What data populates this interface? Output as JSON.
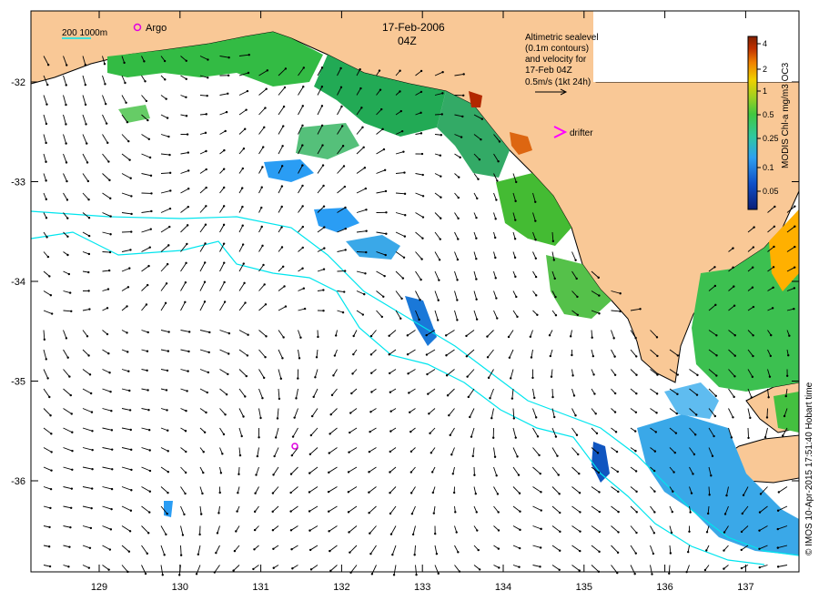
{
  "header": {
    "date": "17-Feb-2006",
    "time": "04Z"
  },
  "legend": {
    "depth_label": "200  1000m",
    "argo_label": "Argo",
    "drifter_label": "drifter",
    "altimetry_lines": [
      "Altimetric sealevel",
      "(0.1m contours)",
      "and velocity for",
      "17-Feb 04Z",
      "0.5m/s (1kt 24h)"
    ]
  },
  "colorbar": {
    "title": "MODIS Chl-a mg/m3 OC3",
    "ticks": [
      "4",
      "2",
      "1",
      "0.5",
      "0.25",
      "0.1",
      "0.05"
    ]
  },
  "axes": {
    "lon_ticks": [
      "129",
      "130",
      "131",
      "132",
      "133",
      "134",
      "135",
      "136",
      "137"
    ],
    "lat_ticks": [
      "-32",
      "-33",
      "-34",
      "-35",
      "-36"
    ]
  },
  "credit": "© IMOS 10-Apr-2015 17:51:40 Hobart time",
  "colors": {
    "land": "#f9c896",
    "isobath": "#00e5ee",
    "argo": "#e000e0",
    "drifter": "#ff00ff",
    "chl_high": "#b22800",
    "chl_mid": "#33cc33",
    "chl_low": "#2a9df4"
  }
}
